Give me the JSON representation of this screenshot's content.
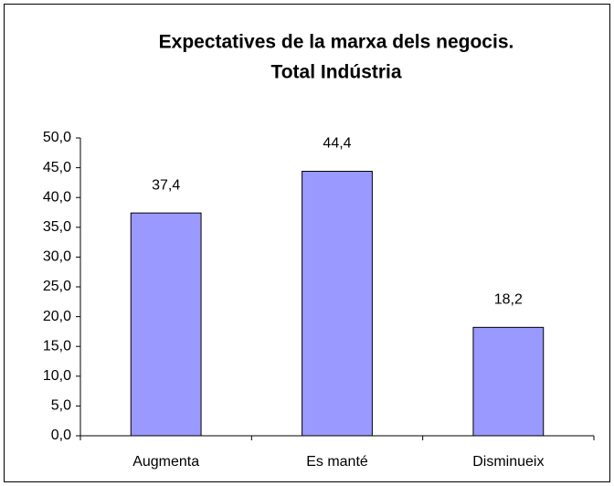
{
  "chart_data": {
    "type": "bar",
    "title": [
      "Expectatives de la marxa dels negocis.",
      "Total Indústria"
    ],
    "categories": [
      "Augmenta",
      "Es manté",
      "Disminueix"
    ],
    "values": [
      37.4,
      44.4,
      18.2
    ],
    "value_labels": [
      "37,4",
      "44,4",
      "18,2"
    ],
    "color": "#9999ff",
    "ylim": [
      0,
      50
    ],
    "yticks": [
      {
        "value": 0,
        "label": "0,0"
      },
      {
        "value": 5,
        "label": "5,0"
      },
      {
        "value": 10,
        "label": "10,0"
      },
      {
        "value": 15,
        "label": "15,0"
      },
      {
        "value": 20,
        "label": "20,0"
      },
      {
        "value": 25,
        "label": "25,0"
      },
      {
        "value": 30,
        "label": "30,0"
      },
      {
        "value": 35,
        "label": "35,0"
      },
      {
        "value": 40,
        "label": "40,0"
      },
      {
        "value": 45,
        "label": "45,0"
      },
      {
        "value": 50,
        "label": "50,0"
      }
    ],
    "grid": false
  }
}
